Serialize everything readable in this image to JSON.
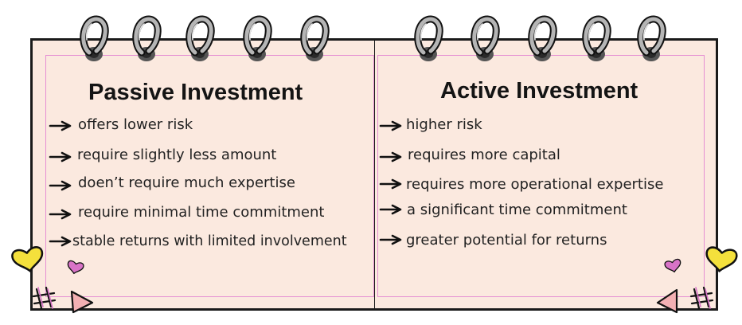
{
  "left_panel": {
    "title": "Passive Investment",
    "items": [
      "offers lower risk",
      "require slightly less amount",
      "doen’t require much expertise",
      "require minimal time commitment",
      "stable returns with limited involvement"
    ]
  },
  "right_panel": {
    "title": "Active Investment",
    "items": [
      "higher risk",
      "requires more capital",
      "requires more operational expertise",
      "a significant time commitment",
      "greater potential for returns"
    ]
  },
  "icons": {
    "bullet": "arrow-right-icon",
    "binding": "spiral-ring-icon",
    "decor": [
      "heart-icon",
      "triangle-icon",
      "hash-doodle-icon"
    ]
  },
  "colors": {
    "paper": "#fbe9df",
    "frame_line": "#e58fd3",
    "outline": "#1a1a1a",
    "heart_yellow": "#f4e03c",
    "heart_pink": "#d873c7",
    "triangle_pink": "#f3b0b3",
    "ring_gray": "#a9a9a9"
  }
}
